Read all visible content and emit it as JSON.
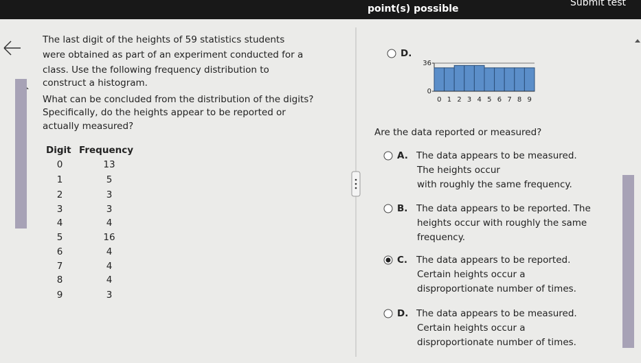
{
  "header": {
    "title": "point(s) possible",
    "button": "Submit test"
  },
  "question": {
    "lines": [
      "The last digit of the heights of 59 statistics students",
      "were obtained as part of an experiment conducted for a",
      "class. Use the following frequency distribution to",
      "construct a histogram.",
      "What can be concluded from the distribution of the digits?",
      "Specifically, do the heights appear to be reported or",
      "actually measured?"
    ]
  },
  "table": {
    "headers": [
      "Digit",
      "Frequency"
    ],
    "rows": [
      [
        0,
        13
      ],
      [
        1,
        5
      ],
      [
        2,
        3
      ],
      [
        3,
        3
      ],
      [
        4,
        4
      ],
      [
        5,
        16
      ],
      [
        6,
        4
      ],
      [
        7,
        4
      ],
      [
        8,
        4
      ],
      [
        9,
        3
      ]
    ]
  },
  "graph_option": {
    "letter": "D."
  },
  "chart_data": {
    "type": "bar",
    "categories": [
      "0",
      "1",
      "2",
      "3",
      "4",
      "5",
      "6",
      "7",
      "8",
      "9"
    ],
    "values": [
      30,
      30,
      33,
      33,
      33,
      30,
      30,
      30,
      30,
      30
    ],
    "color": "#5b8ec9",
    "ylim": [
      0,
      36
    ],
    "yticks": [
      0,
      36
    ]
  },
  "prompt": "Are the data reported or measured?",
  "selected_option": 2,
  "options": [
    {
      "letter": "A.",
      "lines": [
        "The data appears to be measured.",
        "The heights occur",
        "with roughly the same frequency."
      ]
    },
    {
      "letter": "B.",
      "lines": [
        "The data appears to be reported. The",
        "heights occur with roughly the same",
        "frequency."
      ]
    },
    {
      "letter": "C.",
      "lines": [
        "The data appears to be reported.",
        "Certain heights occur a",
        "disproportionate number of times."
      ]
    },
    {
      "letter": "D.",
      "lines": [
        "The data appears to be measured.",
        "Certain heights occur a",
        "disproportionate number of times."
      ]
    }
  ]
}
